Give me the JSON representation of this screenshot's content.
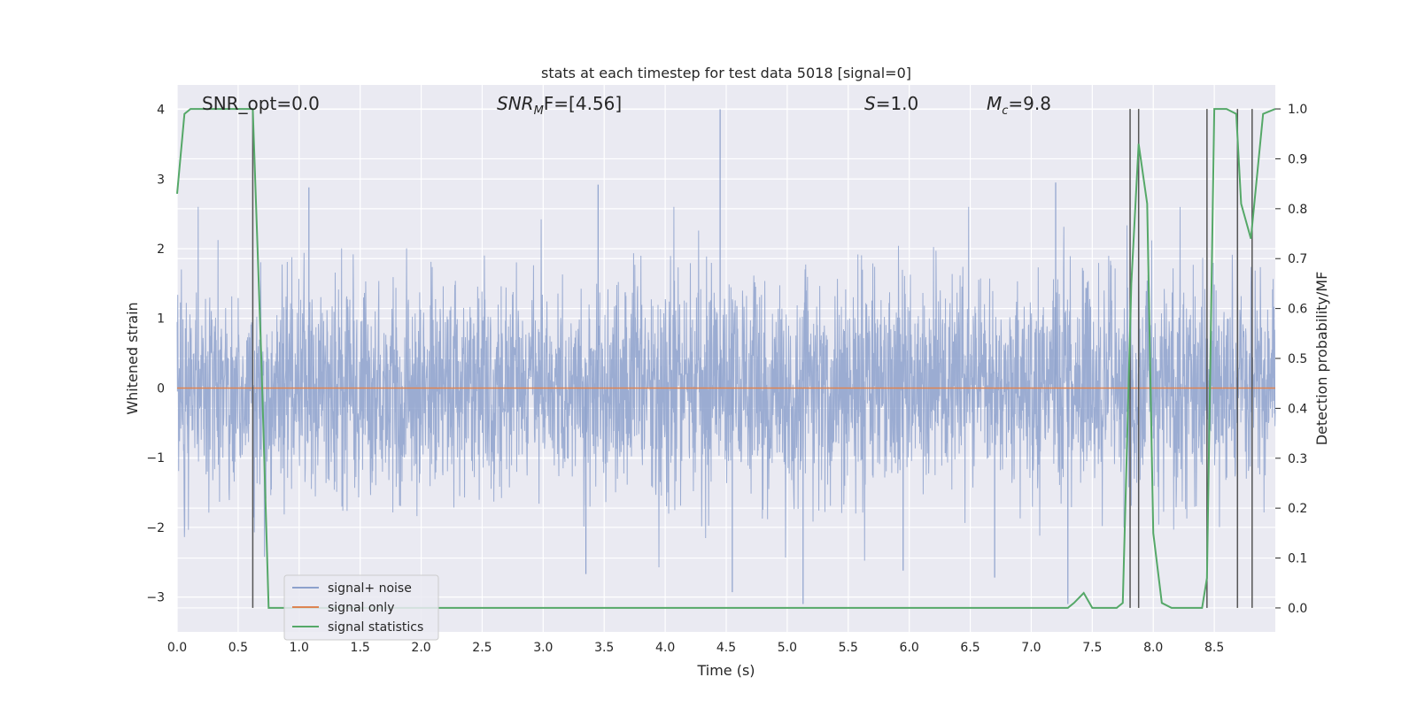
{
  "chart_data": {
    "type": "line",
    "title": "stats at each timestep for test data 5018 [signal=0]",
    "xlabel": "Time (s)",
    "ylabel": "Whitened strain",
    "y2label": "Detection probability/MF",
    "xlim": [
      0.0,
      9.0
    ],
    "ylim": [
      -3.5,
      4.35
    ],
    "y2lim": [
      -0.048,
      1.048
    ],
    "xticks": [
      "0.0",
      "0.5",
      "1.0",
      "1.5",
      "2.0",
      "2.5",
      "3.0",
      "3.5",
      "4.0",
      "4.5",
      "5.0",
      "5.5",
      "6.0",
      "6.5",
      "7.0",
      "7.5",
      "8.0",
      "8.5"
    ],
    "xtick_values": [
      0.0,
      0.5,
      1.0,
      1.5,
      2.0,
      2.5,
      3.0,
      3.5,
      4.0,
      4.5,
      5.0,
      5.5,
      6.0,
      6.5,
      7.0,
      7.5,
      8.0,
      8.5
    ],
    "yticks": [
      "4",
      "3",
      "2",
      "1",
      "0",
      "−1",
      "−2",
      "−3"
    ],
    "ytick_values": [
      4,
      3,
      2,
      1,
      0,
      -1,
      -2,
      -3
    ],
    "y2ticks": [
      "1.0",
      "0.9",
      "0.8",
      "0.7",
      "0.6",
      "0.5",
      "0.4",
      "0.3",
      "0.2",
      "0.1",
      "0.0"
    ],
    "y2tick_values": [
      1.0,
      0.9,
      0.8,
      0.7,
      0.6,
      0.5,
      0.4,
      0.3,
      0.2,
      0.1,
      0.0
    ],
    "grid": true,
    "legend_position": "lower-left",
    "annotations": {
      "snr_opt": "SNR_opt=0.0",
      "snr_mf_main": "SNR",
      "snr_mf_sub": "M",
      "snr_mf_rest": "F=[4.56]",
      "s_main": "S",
      "s_rest": "=1.0",
      "mc_main": "M",
      "mc_sub": "c",
      "mc_rest": "=9.8"
    },
    "series": [
      {
        "name": "signal+ noise",
        "color": "#8da1cc",
        "noise_std": 0.75,
        "noise_peaks": [
          {
            "t": 4.45,
            "v": 4.0
          },
          {
            "t": 1.08,
            "v": 2.88
          },
          {
            "t": 3.45,
            "v": 2.92
          },
          {
            "t": 7.2,
            "v": 2.95
          },
          {
            "t": 5.13,
            "v": -3.1
          },
          {
            "t": 3.35,
            "v": -2.67
          },
          {
            "t": 4.55,
            "v": -2.93
          },
          {
            "t": 7.3,
            "v": -3.1
          },
          {
            "t": 6.7,
            "v": -2.72
          },
          {
            "t": 5.95,
            "v": -2.62
          }
        ]
      },
      {
        "name": "signal only",
        "color": "#dd8452",
        "values_constant": 0.0
      },
      {
        "name": "signal statistics",
        "color": "#55a868",
        "axis": "right",
        "x": [
          0.0,
          0.06,
          0.11,
          0.2,
          0.3,
          0.4,
          0.5,
          0.6,
          0.62,
          0.69,
          0.75,
          0.8,
          1.0,
          2.0,
          3.0,
          4.0,
          5.0,
          6.0,
          7.0,
          7.3,
          7.35,
          7.43,
          7.5,
          7.6,
          7.7,
          7.75,
          7.82,
          7.88,
          7.95,
          8.0,
          8.07,
          8.15,
          8.25,
          8.4,
          8.44,
          8.5,
          8.6,
          8.68,
          8.72,
          8.8,
          8.9,
          9.0
        ],
        "values": [
          0.83,
          0.99,
          1.0,
          1.0,
          1.0,
          1.0,
          1.0,
          1.0,
          1.0,
          0.5,
          0.0,
          0.0,
          0.0,
          0.0,
          0.0,
          0.0,
          0.0,
          0.0,
          0.0,
          0.0,
          0.01,
          0.03,
          0.0,
          0.0,
          0.0,
          0.01,
          0.65,
          0.93,
          0.81,
          0.15,
          0.01,
          0.0,
          0.0,
          0.0,
          0.06,
          1.0,
          1.0,
          0.99,
          0.81,
          0.74,
          0.99,
          1.0
        ]
      }
    ],
    "vertical_lines": [
      0.62,
      7.81,
      7.88,
      8.44,
      8.69,
      8.81
    ],
    "vertical_line_color": "#555555"
  }
}
